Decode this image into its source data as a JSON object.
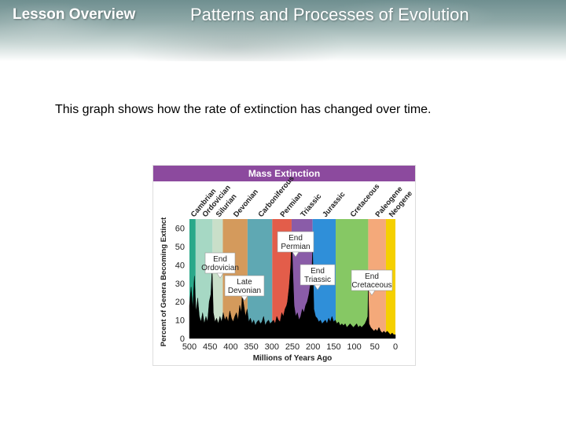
{
  "header": {
    "lesson_label": "Lesson Overview",
    "title": "Patterns and Processes of Evolution"
  },
  "caption": "This graph shows how the rate of extinction has changed over time.",
  "chart_data": {
    "type": "area",
    "title": "Mass Extinction",
    "xlabel": "Millions of Years Ago",
    "ylabel": "Percent of Genera Becoming Extinct",
    "xlim": [
      500,
      0
    ],
    "ylim": [
      0,
      65
    ],
    "x_ticks": [
      "500",
      "450",
      "400",
      "350",
      "300",
      "250",
      "200",
      "150",
      "100",
      "50",
      "0"
    ],
    "y_ticks": [
      "0",
      "10",
      "20",
      "30",
      "40",
      "50",
      "60"
    ],
    "periods": [
      {
        "name": "Cambrian",
        "start": 500,
        "end": 485,
        "color": "#2aa88a"
      },
      {
        "name": "Ordovician",
        "start": 485,
        "end": 444,
        "color": "#a6d8c4"
      },
      {
        "name": "Silurian",
        "start": 444,
        "end": 419,
        "color": "#c9dfc9"
      },
      {
        "name": "Devonian",
        "start": 419,
        "end": 359,
        "color": "#d49a5c"
      },
      {
        "name": "Carboniferous",
        "start": 359,
        "end": 299,
        "color": "#5fa8b3"
      },
      {
        "name": "Permian",
        "start": 299,
        "end": 252,
        "color": "#e35d4a"
      },
      {
        "name": "Triassic",
        "start": 252,
        "end": 201,
        "color": "#8a5ca8"
      },
      {
        "name": "Jurassic",
        "start": 201,
        "end": 145,
        "color": "#2f8fd9"
      },
      {
        "name": "Cretaceous",
        "start": 145,
        "end": 66,
        "color": "#86c864"
      },
      {
        "name": "Paleogene",
        "start": 66,
        "end": 23,
        "color": "#f4a97a"
      },
      {
        "name": "Neogene",
        "start": 23,
        "end": 0,
        "color": "#f5d000"
      }
    ],
    "series": [
      {
        "name": "Percent of genera becoming extinct",
        "x": [
          500,
          496,
          492,
          488,
          484,
          480,
          476,
          472,
          468,
          464,
          460,
          456,
          452,
          448,
          445,
          442,
          438,
          434,
          430,
          426,
          422,
          418,
          414,
          410,
          406,
          402,
          398,
          394,
          390,
          386,
          382,
          378,
          374,
          372,
          368,
          364,
          360,
          356,
          352,
          348,
          344,
          340,
          336,
          332,
          328,
          324,
          320,
          316,
          312,
          308,
          304,
          300,
          296,
          292,
          288,
          284,
          280,
          276,
          272,
          268,
          264,
          262,
          258,
          254,
          252,
          249,
          246,
          242,
          238,
          234,
          230,
          226,
          222,
          218,
          214,
          210,
          206,
          203,
          201,
          198,
          194,
          190,
          186,
          182,
          178,
          174,
          170,
          166,
          162,
          158,
          154,
          150,
          146,
          142,
          138,
          134,
          130,
          126,
          122,
          118,
          114,
          110,
          106,
          102,
          98,
          94,
          90,
          86,
          82,
          78,
          74,
          70,
          67,
          66,
          64,
          60,
          56,
          52,
          48,
          44,
          40,
          36,
          32,
          28,
          24,
          20,
          16,
          12,
          8,
          4,
          0
        ],
        "y": [
          18,
          28,
          16,
          34,
          14,
          22,
          12,
          9,
          14,
          8,
          12,
          9,
          20,
          24,
          38,
          14,
          9,
          11,
          8,
          12,
          9,
          14,
          10,
          12,
          9,
          15,
          11,
          9,
          12,
          14,
          10,
          18,
          14,
          24,
          18,
          12,
          16,
          9,
          11,
          8,
          10,
          7,
          9,
          10,
          8,
          9,
          12,
          7,
          9,
          10,
          8,
          9,
          10,
          8,
          12,
          10,
          9,
          14,
          12,
          16,
          18,
          20,
          28,
          40,
          56,
          36,
          18,
          12,
          14,
          10,
          12,
          16,
          14,
          18,
          20,
          24,
          30,
          36,
          48,
          16,
          12,
          11,
          9,
          10,
          8,
          9,
          10,
          8,
          11,
          9,
          12,
          9,
          10,
          8,
          9,
          7,
          8,
          7,
          8,
          6,
          7,
          8,
          7,
          6,
          7,
          8,
          6,
          7,
          6,
          7,
          8,
          10,
          12,
          28,
          8,
          6,
          5,
          4,
          5,
          4,
          6,
          4,
          3,
          4,
          3,
          4,
          3,
          2,
          3,
          2,
          2
        ]
      }
    ],
    "annotations": [
      {
        "text": "End Ordovician",
        "x": 445,
        "y": 38
      },
      {
        "text": "Late Devonian",
        "x": 372,
        "y": 24
      },
      {
        "text": "End Permian",
        "x": 252,
        "y": 56
      },
      {
        "text": "End Triassic",
        "x": 201,
        "y": 48
      },
      {
        "text": "End Cretaceous",
        "x": 66,
        "y": 28
      }
    ],
    "colors": {
      "title_bar": "#8c4a9e",
      "area_fill": "#000000",
      "axis_text": "#222222"
    }
  }
}
